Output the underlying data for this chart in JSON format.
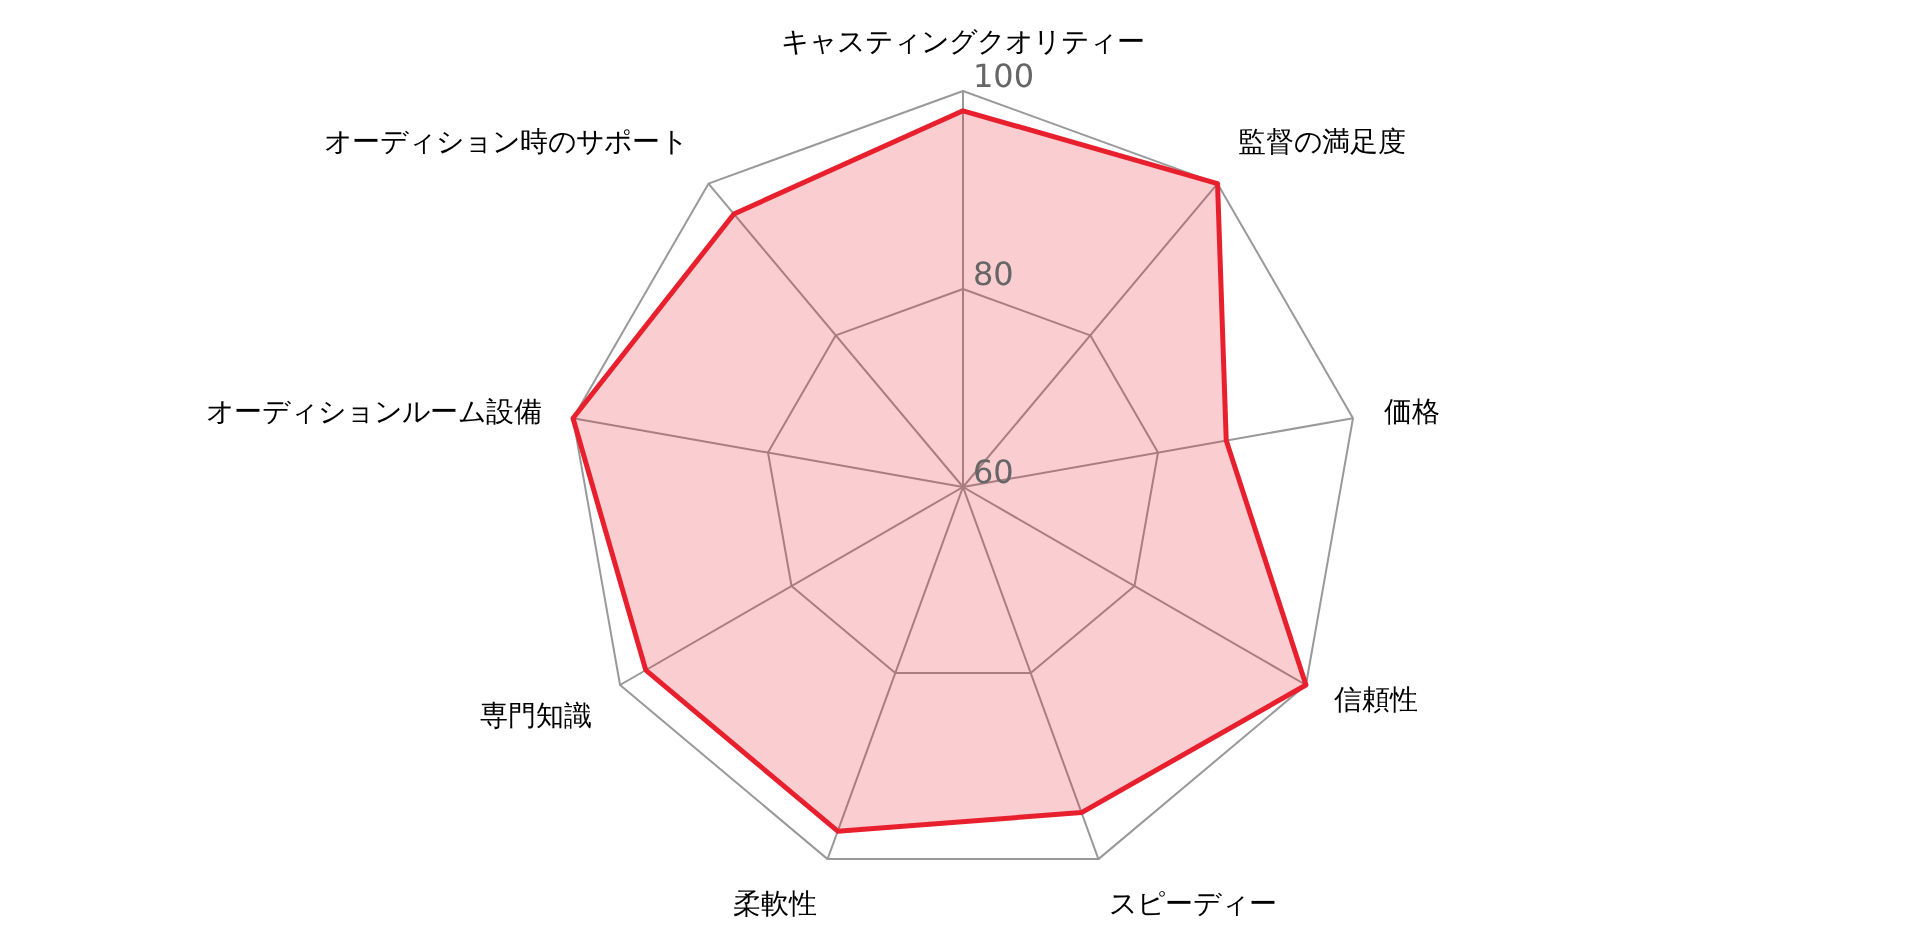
{
  "chart_data": {
    "type": "radar",
    "categories": [
      "キャスティングクオリティー",
      "監督の満足度",
      "価格",
      "信頼性",
      "スピーディー",
      "柔軟性",
      "専門知識",
      "オーディションルーム設備",
      "オーディション時のサポート"
    ],
    "series": [
      {
        "color": "#e8202e",
        "values": [
          98,
          100,
          87,
          100,
          95,
          97,
          97,
          100,
          96
        ]
      }
    ],
    "ylim": [
      60,
      100
    ],
    "yticks": [
      60,
      80,
      100
    ],
    "grid": true
  }
}
